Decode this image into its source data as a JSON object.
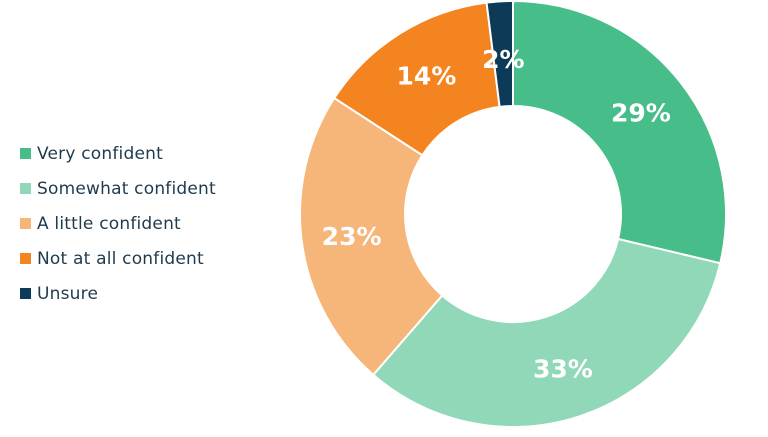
{
  "chart_data": {
    "type": "pie",
    "title": "",
    "donut": true,
    "legend_position": "left",
    "categories": [
      "Very confident",
      "Somewhat confident",
      "A little confident",
      "Not at all confident",
      "Unsure"
    ],
    "values": [
      29,
      33,
      23,
      14,
      2
    ],
    "labels": [
      "29%",
      "33%",
      "23%",
      "14%",
      "2%"
    ],
    "colors": [
      "#47bd8a",
      "#91d8b9",
      "#f6b67a",
      "#f3841f",
      "#0d3b57"
    ]
  }
}
